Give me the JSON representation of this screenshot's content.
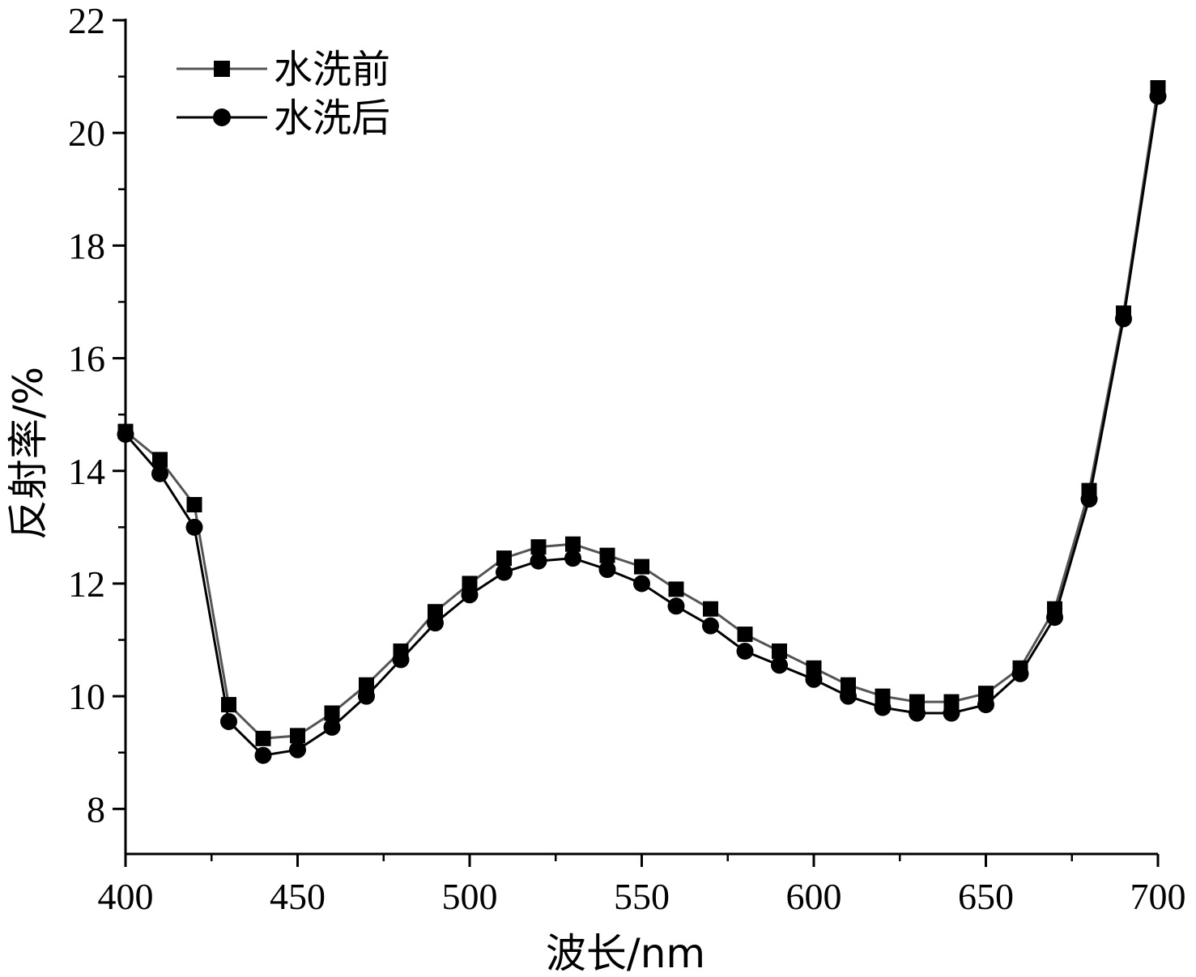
{
  "chart_data": {
    "type": "line",
    "title": "",
    "xlabel": "波长/nm",
    "ylabel": "反射率/%",
    "xlim": [
      400,
      700
    ],
    "ylim": [
      7.2,
      22
    ],
    "xticks": [
      400,
      450,
      500,
      550,
      600,
      650,
      700
    ],
    "yticks": [
      8,
      10,
      12,
      14,
      16,
      18,
      20,
      22
    ],
    "grid": false,
    "legend_position": "top-left",
    "x": [
      400,
      410,
      420,
      430,
      440,
      450,
      460,
      470,
      480,
      490,
      500,
      510,
      520,
      530,
      540,
      550,
      560,
      570,
      580,
      590,
      600,
      610,
      620,
      630,
      640,
      650,
      660,
      670,
      680,
      690,
      700
    ],
    "series": [
      {
        "name": "水洗前",
        "marker": "square",
        "color": "#555555",
        "values": [
          14.7,
          14.2,
          13.4,
          9.85,
          9.25,
          9.3,
          9.7,
          10.2,
          10.8,
          11.5,
          12.0,
          12.45,
          12.65,
          12.7,
          12.5,
          12.3,
          11.9,
          11.55,
          11.1,
          10.8,
          10.5,
          10.2,
          10.0,
          9.9,
          9.9,
          10.05,
          10.5,
          11.55,
          13.65,
          16.8,
          20.8
        ]
      },
      {
        "name": "水洗后",
        "marker": "circle",
        "color": "#000000",
        "values": [
          14.65,
          13.95,
          13.0,
          9.55,
          8.95,
          9.05,
          9.45,
          10.0,
          10.65,
          11.3,
          11.8,
          12.2,
          12.4,
          12.45,
          12.25,
          12.0,
          11.6,
          11.25,
          10.8,
          10.55,
          10.3,
          10.0,
          9.8,
          9.7,
          9.7,
          9.85,
          10.4,
          11.4,
          13.5,
          16.7,
          20.65
        ]
      }
    ]
  }
}
